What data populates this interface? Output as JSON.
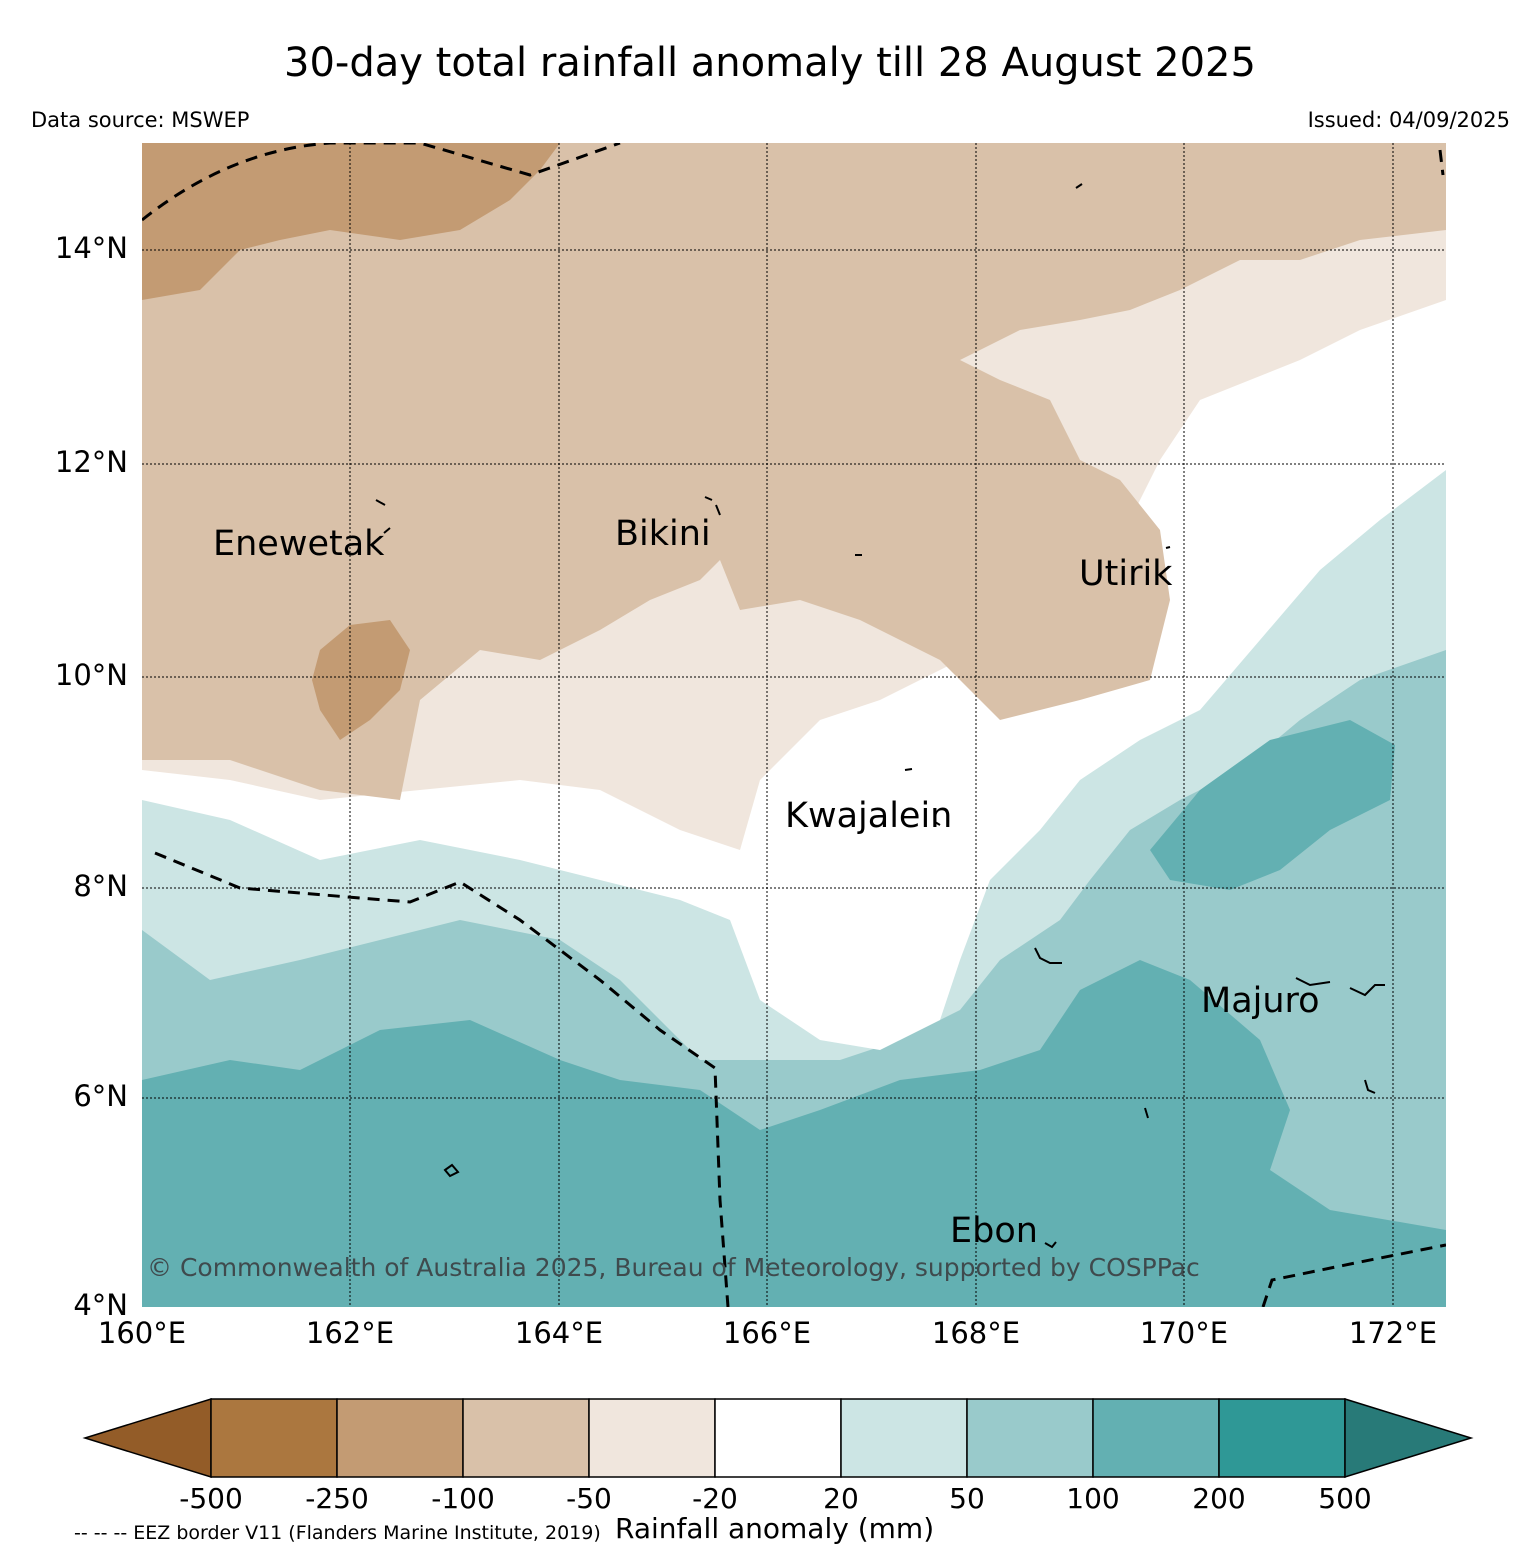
{
  "header": {
    "title": "30-day total rainfall anomaly till 28 August 2025",
    "data_source": "Data source: MSWEP",
    "issued": "Issued: 04/09/2025"
  },
  "map": {
    "lat_labels": [
      "14°N",
      "12°N",
      "10°N",
      "8°N",
      "6°N",
      "4°N"
    ],
    "lon_labels": [
      "160°E",
      "162°E",
      "164°E",
      "166°E",
      "168°E",
      "170°E",
      "172°E"
    ],
    "places": [
      "Enewetak",
      "Bikini",
      "Utirik",
      "Kwajalein",
      "Majuro",
      "Ebon"
    ],
    "copyright": "© Commonwealth of Australia 2025, Bureau of Meteorology, supported by COSPPac"
  },
  "colorbar": {
    "ticks": [
      "-500",
      "-250",
      "-100",
      "-50",
      "-20",
      "20",
      "50",
      "100",
      "200",
      "500"
    ],
    "label": "Rainfall anomaly (mm)",
    "colors": [
      "#935c28",
      "#ab773f",
      "#c39b73",
      "#d9c1a9",
      "#f0e6dd",
      "#ffffff",
      "#cce5e4",
      "#99cacb",
      "#63b0b2",
      "#2f9896",
      "#287a78"
    ]
  },
  "legend": {
    "eez_note": "-- -- -- EEZ border V11 (Flanders Marine Institute, 2019)"
  }
}
